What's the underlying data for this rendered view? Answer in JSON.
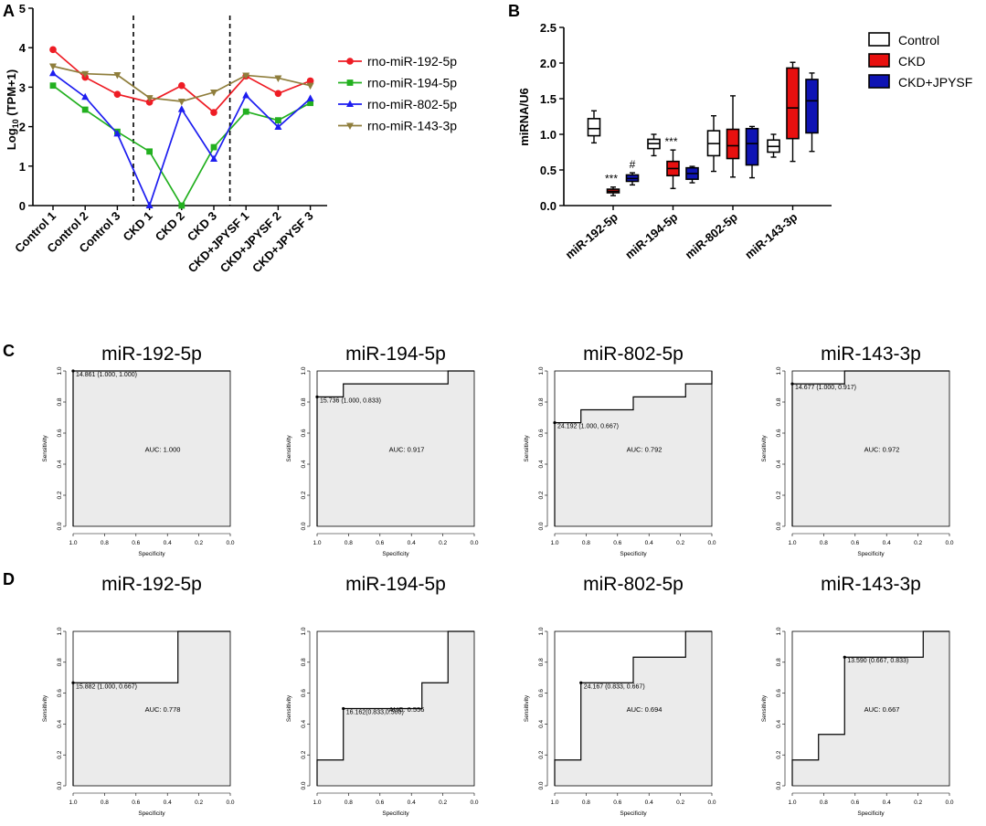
{
  "panel_labels": [
    "A",
    "B",
    "C",
    "D"
  ],
  "colors": {
    "miR-192": "#ee1c24",
    "miR-194": "#22b01f",
    "miR-802": "#1d1df0",
    "miR-143": "#8f7e3c",
    "control_box": "#ffffff",
    "ckd_box": "#e8100f",
    "jpysf_box": "#0f14b4",
    "roc_fill": "#ebebeb"
  },
  "chart_data": [
    {
      "id": "A",
      "type": "line",
      "ylabel_pre": "Log",
      "ylabel_sub": "10",
      "ylabel_post": " (TPM+1)",
      "ylim": [
        0,
        5
      ],
      "yticks": [
        "0",
        "1",
        "2",
        "3",
        "4",
        "5"
      ],
      "categories": [
        "Control 1",
        "Control 2",
        "Control 3",
        "CKD 1",
        "CKD 2",
        "CKD 3",
        "CKD+JPYSF 1",
        "CKD+JPYSF 2",
        "CKD+JPYSF 3"
      ],
      "dividers_after": [
        3,
        6
      ],
      "series": [
        {
          "name": "rno-miR-192-5p",
          "marker": "circle",
          "values": [
            3.95,
            3.25,
            2.82,
            2.62,
            3.04,
            2.36,
            3.28,
            2.84,
            3.16
          ]
        },
        {
          "name": "rno-miR-194-5p",
          "marker": "square",
          "values": [
            3.04,
            2.43,
            1.87,
            1.37,
            0.0,
            1.48,
            2.38,
            2.16,
            2.6
          ]
        },
        {
          "name": "rno-miR-802-5p",
          "marker": "triangle",
          "values": [
            3.35,
            2.75,
            1.82,
            0.0,
            2.44,
            1.18,
            2.79,
            1.99,
            2.71
          ]
        },
        {
          "name": "rno-miR-143-3p",
          "marker": "triangle-down",
          "values": [
            3.53,
            3.34,
            3.31,
            2.73,
            2.64,
            2.87,
            3.3,
            3.23,
            3.04
          ]
        }
      ]
    },
    {
      "id": "B",
      "type": "box",
      "ylabel": "miRNA/U6",
      "ylim": [
        0,
        2.5
      ],
      "yticks": [
        "0.0",
        "0.5",
        "1.0",
        "1.5",
        "2.0",
        "2.5"
      ],
      "categories": [
        "miR-192-5p",
        "miR-194-5p",
        "miR-802-5p",
        "miR-143-3p"
      ],
      "groups": [
        "Control",
        "CKD",
        "CKD+JPYSF"
      ],
      "boxes": [
        [
          [
            0.88,
            0.98,
            1.08,
            1.22,
            1.33
          ],
          [
            0.14,
            0.18,
            0.2,
            0.23,
            0.26
          ],
          [
            0.29,
            0.34,
            0.38,
            0.43,
            0.46
          ]
        ],
        [
          [
            0.7,
            0.8,
            0.87,
            0.93,
            1.0
          ],
          [
            0.24,
            0.42,
            0.52,
            0.62,
            0.78
          ],
          [
            0.32,
            0.37,
            0.45,
            0.53,
            0.55
          ]
        ],
        [
          [
            0.48,
            0.7,
            0.87,
            1.05,
            1.26
          ],
          [
            0.4,
            0.66,
            0.84,
            1.07,
            1.54
          ],
          [
            0.39,
            0.57,
            0.87,
            1.08,
            1.11
          ]
        ],
        [
          [
            0.68,
            0.75,
            0.83,
            0.92,
            1.0
          ],
          [
            0.62,
            0.94,
            1.37,
            1.93,
            2.01
          ],
          [
            0.76,
            1.02,
            1.47,
            1.77,
            1.86
          ]
        ]
      ],
      "annotations": [
        {
          "text": "***",
          "cat": 0,
          "group": 1
        },
        {
          "text": "#",
          "cat": 0,
          "group": 2
        },
        {
          "text": "***",
          "cat": 1,
          "group": 1
        }
      ]
    },
    {
      "id": "C",
      "type": "roc",
      "xlabel": "Specificity",
      "ylabel": "Sensitivity",
      "ticks": [
        "1.0",
        "0.8",
        "0.6",
        "0.4",
        "0.2",
        "0.0"
      ],
      "yticks": [
        "0.0",
        "0.2",
        "0.4",
        "0.6",
        "0.8",
        "1.0"
      ],
      "curves": [
        {
          "title": "miR-192-5p",
          "auc": "AUC: 1.000",
          "threshold": "14.861 (1.000, 1.000)",
          "point": [
            1.0,
            1.0
          ],
          "path": [
            [
              1,
              0
            ],
            [
              1,
              1
            ],
            [
              0,
              1
            ]
          ]
        },
        {
          "title": "miR-194-5p",
          "auc": "AUC: 0.917",
          "threshold": "15.736 (1.000, 0.833)",
          "point": [
            1.0,
            0.833
          ],
          "path": [
            [
              1,
              0
            ],
            [
              1,
              0.833
            ],
            [
              0.833,
              0.833
            ],
            [
              0.833,
              0.917
            ],
            [
              0.167,
              0.917
            ],
            [
              0.167,
              1
            ],
            [
              0,
              1
            ]
          ]
        },
        {
          "title": "miR-802-5p",
          "auc": "AUC: 0.792",
          "threshold": "24.192 (1.000, 0.667)",
          "point": [
            1.0,
            0.667
          ],
          "path": [
            [
              1,
              0
            ],
            [
              1,
              0.667
            ],
            [
              0.833,
              0.667
            ],
            [
              0.833,
              0.75
            ],
            [
              0.5,
              0.75
            ],
            [
              0.5,
              0.833
            ],
            [
              0.167,
              0.833
            ],
            [
              0.167,
              0.917
            ],
            [
              0,
              0.917
            ],
            [
              0,
              1
            ]
          ]
        },
        {
          "title": "miR-143-3p",
          "auc": "AUC: 0.972",
          "threshold": "14.677 (1.000, 0.917)",
          "point": [
            1.0,
            0.917
          ],
          "path": [
            [
              1,
              0
            ],
            [
              1,
              0.917
            ],
            [
              0.667,
              0.917
            ],
            [
              0.667,
              1
            ],
            [
              0,
              1
            ]
          ]
        }
      ]
    },
    {
      "id": "D",
      "type": "roc",
      "xlabel": "Specificity",
      "ylabel": "Sensitivity",
      "ticks": [
        "1.0",
        "0.8",
        "0.6",
        "0.4",
        "0.2",
        "0.0"
      ],
      "yticks": [
        "0.0",
        "0.2",
        "0.4",
        "0.6",
        "0.8",
        "1.0"
      ],
      "curves": [
        {
          "title": "miR-192-5p",
          "auc": "AUC: 0.778",
          "threshold": "15.882 (1.000, 0.667)",
          "point": [
            1.0,
            0.667
          ],
          "path": [
            [
              1,
              0
            ],
            [
              1,
              0.667
            ],
            [
              0.333,
              0.667
            ],
            [
              0.333,
              1
            ],
            [
              0,
              1
            ]
          ]
        },
        {
          "title": "miR-194-5p",
          "auc": "AUC: 0.556",
          "threshold": "16.162(0.833,0.500)",
          "point": [
            0.833,
            0.5
          ],
          "path": [
            [
              1,
              0
            ],
            [
              1,
              0.167
            ],
            [
              0.833,
              0.167
            ],
            [
              0.833,
              0.5
            ],
            [
              0.333,
              0.5
            ],
            [
              0.333,
              0.667
            ],
            [
              0.167,
              0.667
            ],
            [
              0.167,
              1
            ],
            [
              0,
              1
            ]
          ]
        },
        {
          "title": "miR-802-5p",
          "auc": "AUC: 0.694",
          "threshold": "24.167 (0.833, 0.667)",
          "point": [
            0.833,
            0.667
          ],
          "path": [
            [
              1,
              0
            ],
            [
              1,
              0.167
            ],
            [
              0.833,
              0.167
            ],
            [
              0.833,
              0.667
            ],
            [
              0.5,
              0.667
            ],
            [
              0.5,
              0.833
            ],
            [
              0.167,
              0.833
            ],
            [
              0.167,
              1
            ],
            [
              0,
              1
            ]
          ]
        },
        {
          "title": "miR-143-3p",
          "auc": "AUC: 0.667",
          "threshold": "13.590 (0.667, 0.833)",
          "point": [
            0.667,
            0.833
          ],
          "path": [
            [
              1,
              0
            ],
            [
              1,
              0.167
            ],
            [
              0.833,
              0.167
            ],
            [
              0.833,
              0.333
            ],
            [
              0.667,
              0.333
            ],
            [
              0.667,
              0.833
            ],
            [
              0.167,
              0.833
            ],
            [
              0.167,
              1
            ],
            [
              0,
              1
            ]
          ]
        }
      ]
    }
  ]
}
